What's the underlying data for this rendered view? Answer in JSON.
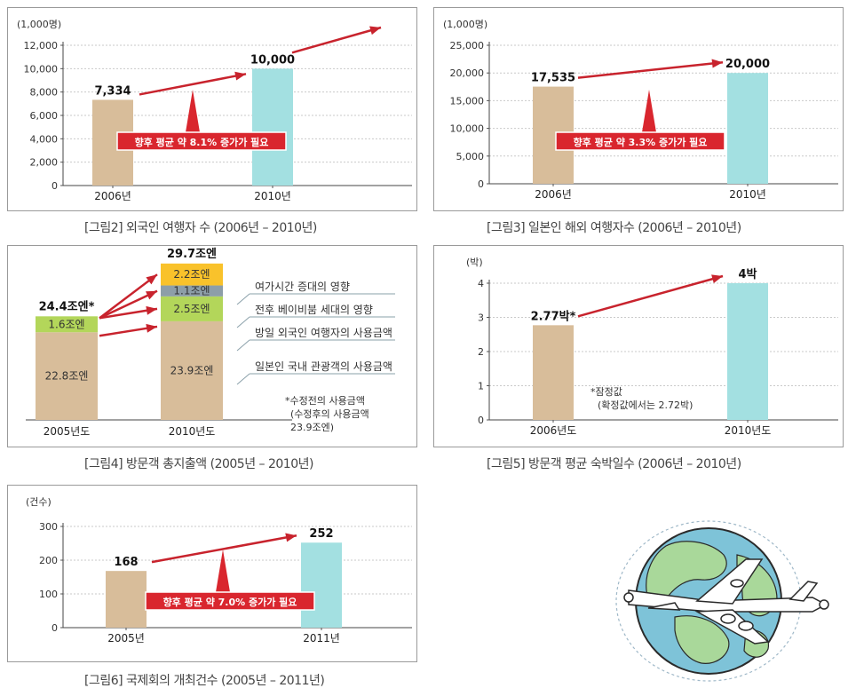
{
  "colors": {
    "tan": "#d8bd9a",
    "cyan": "#a3e0e1",
    "arrow": "#c8232d",
    "label_bg": "#d9262e",
    "green": "#b3d65a",
    "grey": "#8d9ea8",
    "orange": "#f9c22b"
  },
  "charts": [
    {
      "id": "fig2",
      "caption": "[그림2] 외국인 여행자 수 (2006년 – 2010년)",
      "unit": "(1,000명)",
      "ylim": [
        0,
        12000
      ],
      "ticks": [
        "0",
        "2,000",
        "4,000",
        "6,000",
        "8,000",
        "10,000",
        "12,000"
      ],
      "categories": [
        "2006년",
        "2010년"
      ],
      "values": [
        7334,
        10000
      ],
      "value_labels": [
        "7,334",
        "10,000"
      ],
      "callout": "향후 평균 약 8.1% 증가가 필요"
    },
    {
      "id": "fig3",
      "caption": "[그림3] 일본인 해외 여행자수 (2006년 – 2010년)",
      "unit": "(1,000명)",
      "ylim": [
        0,
        25000
      ],
      "ticks": [
        "0",
        "5,000",
        "10,000",
        "15,000",
        "20,000",
        "25,000"
      ],
      "categories": [
        "2006년",
        "2010년"
      ],
      "values": [
        17535,
        20000
      ],
      "value_labels": [
        "17,535",
        "20,000"
      ],
      "callout": "향후 평균 약 3.3% 증가가 필요"
    },
    {
      "id": "fig5",
      "caption": "[그림5] 방문객 평균 숙박일수 (2006년 – 2010년)",
      "unit": "(박)",
      "ylim": [
        0,
        4
      ],
      "ticks": [
        "0",
        "1",
        "2",
        "3",
        "4"
      ],
      "categories": [
        "2006년도",
        "2010년도"
      ],
      "values": [
        2.77,
        4
      ],
      "value_labels": [
        "2.77박*",
        "4박"
      ],
      "notes": [
        "*잠정값",
        "(확정값에서는 2.72박)"
      ]
    },
    {
      "id": "fig6",
      "caption": "[그림6] 국제회의 개최건수 (2005년 – 2011년)",
      "unit": "(건수)",
      "ylim": [
        0,
        300
      ],
      "ticks": [
        "0",
        "100",
        "200",
        "300"
      ],
      "categories": [
        "2005년",
        "2011년"
      ],
      "values": [
        168,
        252
      ],
      "value_labels": [
        "168",
        "252"
      ],
      "callout": "향후 평균 약 7.0% 증가가 필요"
    }
  ],
  "fig4": {
    "caption": "[그림4] 방문객 총지출액 (2005년 – 2010년)",
    "categories": [
      "2005년도",
      "2010년도"
    ],
    "totals": [
      "24.4조엔*",
      "29.7조엔"
    ],
    "bar2005": [
      {
        "value": 22.8,
        "label": "22.8조엔"
      },
      {
        "value": 1.6,
        "label": "1.6조엔"
      }
    ],
    "bar2010": [
      {
        "value": 23.9,
        "label": "23.9조엔"
      },
      {
        "value": 2.5,
        "label": "2.5조엔"
      },
      {
        "value": 1.1,
        "label": "1.1조엔"
      },
      {
        "value": 2.2,
        "label": "2.2조엔"
      }
    ],
    "legend": [
      "여가시간 증대의 영향",
      "전후 베이비붐 세대의 영향",
      "방일 외국인 여행자의 사용금액",
      "일본인 국내 관광객의 사용금액"
    ],
    "notes": [
      "*수정전의 사용금액",
      "(수정후의 사용금액",
      "23.9조엔)"
    ]
  },
  "chart_data": [
    {
      "type": "bar",
      "title": "",
      "categories": [
        "2006년",
        "2010년"
      ],
      "values": [
        7334,
        10000
      ],
      "ylabel": "(1,000명)",
      "ylim": [
        0,
        12000
      ]
    },
    {
      "type": "bar",
      "title": "",
      "categories": [
        "2006년",
        "2010년"
      ],
      "values": [
        17535,
        20000
      ],
      "ylabel": "(1,000명)",
      "ylim": [
        0,
        25000
      ]
    },
    {
      "type": "bar",
      "title": "",
      "categories": [
        "2005년도",
        "2010년도"
      ],
      "series": [
        {
          "name": "일본인 국내 관광객의 사용금액",
          "values": [
            22.8,
            23.9
          ]
        },
        {
          "name": "방일 외국인 여행자의 사용금액",
          "values": [
            1.6,
            2.5
          ]
        },
        {
          "name": "전후 베이비붐 세대의 영향",
          "values": [
            0,
            1.1
          ]
        },
        {
          "name": "여가시간 증대의 영향",
          "values": [
            0,
            2.2
          ]
        }
      ]
    },
    {
      "type": "bar",
      "title": "",
      "categories": [
        "2006년도",
        "2010년도"
      ],
      "values": [
        2.77,
        4
      ],
      "ylabel": "(박)",
      "ylim": [
        0,
        4
      ]
    },
    {
      "type": "bar",
      "title": "",
      "categories": [
        "2005년",
        "2011년"
      ],
      "values": [
        168,
        252
      ],
      "ylabel": "(건수)",
      "ylim": [
        0,
        300
      ]
    }
  ]
}
